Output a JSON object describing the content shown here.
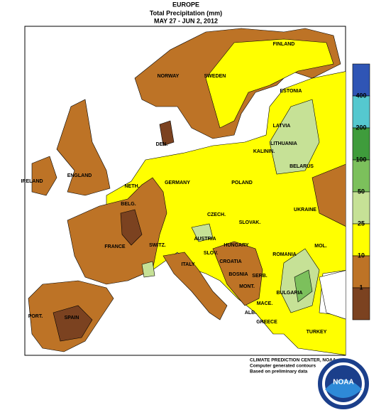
{
  "header": {
    "title": "EUROPE",
    "subtitle": "Total Precipitation (mm)",
    "dates": "MAY 27 - JUN  2, 2012"
  },
  "map": {
    "labels": [
      "FINLAND",
      "NORWAY",
      "SWEDEN",
      "ESTONIA",
      "LATVIA",
      "LITHUANIA",
      "KALININ.",
      "DEN.",
      "BELARUS",
      "IRELAND",
      "ENGLAND",
      "NETH.",
      "GERMANY",
      "POLAND",
      "BELG.",
      "CZECH.",
      "SLOVAK.",
      "UKRAINE",
      "FRANCE",
      "SWITZ.",
      "AUSTRIA",
      "HUNGARY",
      "MOL.",
      "ROMANIA",
      "SLOV.",
      "CROATIA",
      "ITALY",
      "BOSNIA",
      "SERB.",
      "MONT.",
      "BULGARIA",
      "MACE.",
      "ALB.",
      "GREECE",
      "TURKEY",
      "PORT.",
      "SPAIN"
    ]
  },
  "legend": {
    "colors": [
      "#2f55b5",
      "#55c8cf",
      "#3f9c3c",
      "#7cc05c",
      "#c6e196",
      "#ffff00",
      "#bd7326",
      "#7b4220"
    ],
    "labels": [
      "400",
      "200",
      "100",
      "50",
      "25",
      "10",
      "1"
    ]
  },
  "credits": [
    "CLIMATE PREDICTION CENTER, NOAA",
    "Computer generated contours",
    "Based on preliminary data"
  ],
  "logo": "NOAA"
}
